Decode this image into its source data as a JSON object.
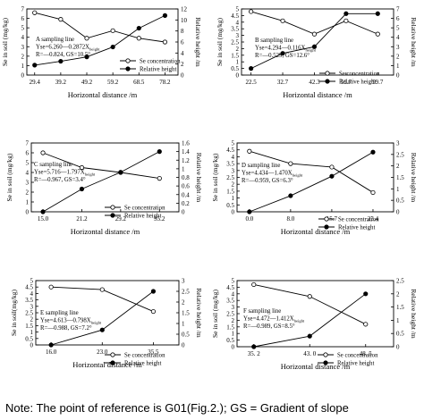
{
  "note": "Note: The point of reference is G01(Fig.2.); GS = Gradient of slope",
  "chart_data": [
    {
      "type": "line",
      "panel": "A",
      "xlabel": "Horizontal distance /m",
      "ylabel": "Se in soil (mg/kg)",
      "y2label": "Relative height /m",
      "categories": [
        "29.4",
        "39.2",
        "49.2",
        "59.2",
        "68.5",
        "78.2"
      ],
      "ylim": [
        0,
        7
      ],
      "yticks": [
        0,
        1,
        2,
        3,
        4,
        5,
        6,
        7
      ],
      "y2lim": [
        0,
        12
      ],
      "y2ticks": [
        0,
        2,
        4,
        6,
        8,
        10,
        12
      ],
      "series": [
        {
          "name": "Se concentration",
          "axis": "left",
          "marker": "open",
          "values": [
            6.6,
            5.9,
            3.9,
            4.7,
            3.9,
            3.5
          ]
        },
        {
          "name": "Relative height",
          "axis": "right",
          "marker": "filled",
          "values": [
            1.8,
            2.5,
            3.3,
            5.1,
            8.5,
            10.8
          ]
        }
      ],
      "annotation": [
        "A sampling line",
        "Yse=6.260—0.2872X",
        "R=—0.824,  GS=10.5°"
      ],
      "annotation_sub": "height",
      "legend_position": "bottom-right"
    },
    {
      "type": "line",
      "panel": "B",
      "xlabel": "Horizontal distance /m",
      "ylabel": "Se in soil (mg/kg)",
      "y2label": "Relative height /m",
      "categories": [
        "22.5",
        "32.7",
        "42.3",
        "51.7",
        "59.7"
      ],
      "ylim": [
        0,
        5
      ],
      "yticks": [
        0,
        0.5,
        1,
        1.5,
        2,
        2.5,
        3,
        3.5,
        4,
        4.5,
        5
      ],
      "y2lim": [
        0,
        7
      ],
      "y2ticks": [
        0,
        1,
        2,
        3,
        4,
        5,
        6,
        7
      ],
      "series": [
        {
          "name": "Se concentration",
          "axis": "left",
          "marker": "open",
          "values": [
            4.8,
            4.1,
            3.1,
            4.1,
            3.1
          ]
        },
        {
          "name": "Relative height",
          "axis": "right",
          "marker": "filled",
          "values": [
            0.7,
            2.3,
            3.0,
            6.5,
            6.5
          ]
        }
      ],
      "annotation": [
        "B sampling line",
        "Yse=4.294—0.116X",
        "R=—0.529,  GS=12.6°"
      ],
      "annotation_sub": "height",
      "legend_position": "bottom-right"
    },
    {
      "type": "line",
      "panel": "C",
      "xlabel": "Horizontal distance /m",
      "ylabel": "Se in soil (mg/kg)",
      "y2label": "Relative height /m",
      "categories": [
        "15.0",
        "21.2",
        "29.2",
        "35.2"
      ],
      "ylim": [
        0,
        7
      ],
      "yticks": [
        0,
        1,
        2,
        3,
        4,
        5,
        6,
        7
      ],
      "y2lim": [
        0,
        1.6
      ],
      "y2ticks": [
        0,
        0.2,
        0.4,
        0.6,
        0.8,
        1,
        1.2,
        1.4,
        1.6
      ],
      "series": [
        {
          "name": "Se concentration",
          "axis": "left",
          "marker": "open",
          "values": [
            6.0,
            4.5,
            4.0,
            3.4
          ]
        },
        {
          "name": "Relative height",
          "axis": "right",
          "marker": "filled",
          "values": [
            0.0,
            0.53,
            0.92,
            1.4
          ]
        }
      ],
      "annotation": [
        "C sampling line",
        "Yse=5.716—1.797X",
        "R=—0.967,  GS=3.4°"
      ],
      "annotation_sub": "height",
      "legend_position": "bottom-right"
    },
    {
      "type": "line",
      "panel": "D",
      "xlabel": "Horizontal distance /m",
      "ylabel": "Se in soil (mg/kg)",
      "y2label": "Relative height /m",
      "categories": [
        "0.0",
        "8.0",
        "15.7",
        "23.4"
      ],
      "ylim": [
        0,
        5
      ],
      "yticks": [
        0,
        0.5,
        1,
        1.5,
        2,
        2.5,
        3,
        3.5,
        4,
        4.5,
        5
      ],
      "y2lim": [
        0,
        3
      ],
      "y2ticks": [
        0,
        0.5,
        1,
        1.5,
        2,
        2.5,
        3
      ],
      "series": [
        {
          "name": "Se concentration",
          "axis": "left",
          "marker": "open",
          "values": [
            4.4,
            3.5,
            3.25,
            1.4
          ]
        },
        {
          "name": "Relative height",
          "axis": "right",
          "marker": "filled",
          "values": [
            0.0,
            0.7,
            1.55,
            2.6
          ]
        }
      ],
      "annotation": [
        "D sampling line",
        "Yse=4.434—1.470X",
        "R=—0.959,  GS=6.3°"
      ],
      "annotation_sub": "height",
      "legend_position": "bottom-right"
    },
    {
      "type": "line",
      "panel": "E",
      "xlabel": "Horizontal distance /m",
      "ylabel": "Se in soil(mg/kg)",
      "y2label": "Relative height /m",
      "categories": [
        "16.0",
        "23.0",
        "35.5"
      ],
      "ylim": [
        0,
        5
      ],
      "yticks": [
        0,
        0.5,
        1,
        1.5,
        2,
        2.5,
        3,
        3.5,
        4,
        4.5,
        5
      ],
      "y2lim": [
        0,
        3
      ],
      "y2ticks": [
        0,
        0.5,
        1,
        1.5,
        2,
        2.5,
        3
      ],
      "series": [
        {
          "name": "Se concentration",
          "axis": "left",
          "marker": "open",
          "values": [
            4.5,
            4.3,
            2.6
          ]
        },
        {
          "name": "Relative height",
          "axis": "right",
          "marker": "filled",
          "values": [
            0.0,
            0.7,
            2.5
          ]
        }
      ],
      "annotation": [
        "E sampling line",
        "Yse=4.613—0.798X",
        "R=—0.988,  GS=7.2°"
      ],
      "annotation_sub": "height",
      "legend_position": "bottom-right"
    },
    {
      "type": "line",
      "panel": "F",
      "xlabel": "Horizontal distance /m",
      "ylabel": "Se in soil (mg/kg)",
      "y2label": "Relative height /m",
      "categories": [
        "35. 2",
        "43. 0",
        "48. 5"
      ],
      "ylim": [
        0,
        5
      ],
      "yticks": [
        0,
        0.5,
        1,
        1.5,
        2,
        2.5,
        3,
        3.5,
        4,
        4.5,
        5
      ],
      "y2lim": [
        0,
        2.5
      ],
      "y2ticks": [
        0,
        0.5,
        1,
        1.5,
        2,
        2.5
      ],
      "series": [
        {
          "name": "Se concentration",
          "axis": "left",
          "marker": "open",
          "values": [
            4.7,
            3.8,
            1.7
          ]
        },
        {
          "name": "Relative height",
          "axis": "right",
          "marker": "filled",
          "values": [
            0.0,
            0.4,
            2.0
          ]
        }
      ],
      "annotation": [
        "F sampling line",
        "Yse=4.472—1.412X",
        "R=—0.989,  GS=8.5°"
      ],
      "annotation_sub": "height",
      "legend_position": "bottom-right"
    }
  ]
}
